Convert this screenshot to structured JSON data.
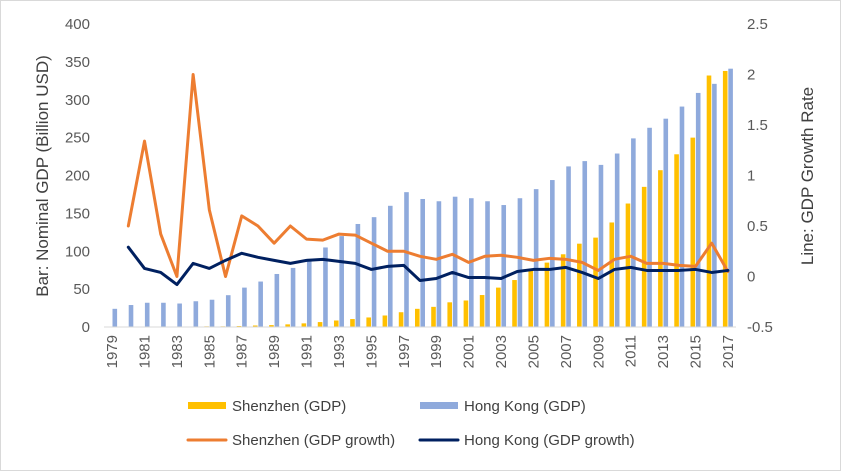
{
  "chart_data": {
    "type": "bar",
    "categories": [
      "1979",
      "1980",
      "1981",
      "1982",
      "1983",
      "1984",
      "1985",
      "1986",
      "1987",
      "1988",
      "1989",
      "1990",
      "1991",
      "1992",
      "1993",
      "1994",
      "1995",
      "1996",
      "1997",
      "1998",
      "1999",
      "2000",
      "2001",
      "2002",
      "2003",
      "2004",
      "2005",
      "2006",
      "2007",
      "2008",
      "2009",
      "2010",
      "2011",
      "2012",
      "2013",
      "2014",
      "2015",
      "2016",
      "2017"
    ],
    "x_tick_labels": [
      "1979",
      "1981",
      "1983",
      "1985",
      "1987",
      "1989",
      "1991",
      "1993",
      "1995",
      "1997",
      "1999",
      "2001",
      "2003",
      "2005",
      "2007",
      "2009",
      "2011",
      "2013",
      "2015",
      "2017"
    ],
    "ylabel": "Bar: Nominal GDP (Billion USD)",
    "y2label": "Line: GDP Growth Rate",
    "ylim": [
      0,
      400
    ],
    "y_ticks": [
      "0",
      "50",
      "100",
      "150",
      "200",
      "250",
      "300",
      "350",
      "400"
    ],
    "y2lim": [
      -0.5,
      2.5
    ],
    "y2_ticks": [
      "-0.5",
      "0",
      "0.5",
      "1",
      "1.5",
      "2",
      "2.5"
    ],
    "grid": false,
    "legend_position": "bottom",
    "series": [
      {
        "name": "Shenzhen (GDP)",
        "kind": "bar",
        "axis": "left",
        "color": "#FFC000",
        "values": [
          0.1,
          0.2,
          0.3,
          0.3,
          0.4,
          0.6,
          0.9,
          0.9,
          1.3,
          2.0,
          2.5,
          3.5,
          4.8,
          6.5,
          8.6,
          10.5,
          12.6,
          15.2,
          19.5,
          24.0,
          26.6,
          32.6,
          35.0,
          42.2,
          52.0,
          62.0,
          75.0,
          85.0,
          96.0,
          110.0,
          118.0,
          138.0,
          163.0,
          185.0,
          207.0,
          228.0,
          250.0,
          332.0,
          338.0
        ]
      },
      {
        "name": "Hong Kong (GDP)",
        "kind": "bar",
        "axis": "left",
        "color": "#8FAADC",
        "values": [
          24,
          29,
          32,
          32,
          31,
          34,
          36,
          42,
          52,
          60,
          70,
          78,
          90,
          105,
          120,
          136,
          145,
          160,
          178,
          169,
          166,
          172,
          170,
          166,
          161,
          170,
          182,
          194,
          212,
          219,
          214,
          229,
          249,
          263,
          275,
          291,
          309,
          321,
          341
        ]
      },
      {
        "name": "Shenzhen (GDP growth)",
        "kind": "line",
        "axis": "right",
        "color": "#ED7D31",
        "values": [
          null,
          0.5,
          1.34,
          0.42,
          0.0,
          2.0,
          0.66,
          0.0,
          0.6,
          0.5,
          0.33,
          0.5,
          0.37,
          0.36,
          0.42,
          0.41,
          0.33,
          0.25,
          0.25,
          0.2,
          0.17,
          0.22,
          0.14,
          0.2,
          0.21,
          0.19,
          0.16,
          0.18,
          0.17,
          0.14,
          0.06,
          0.17,
          0.2,
          0.13,
          0.13,
          0.11,
          0.1,
          0.33,
          0.05
        ]
      },
      {
        "name": "Hong Kong (GDP growth)",
        "kind": "line",
        "axis": "right",
        "color": "#002060",
        "values": [
          null,
          0.29,
          0.08,
          0.04,
          -0.08,
          0.13,
          0.08,
          0.16,
          0.23,
          0.19,
          0.16,
          0.13,
          0.16,
          0.17,
          0.15,
          0.13,
          0.07,
          0.1,
          0.11,
          -0.04,
          -0.02,
          0.04,
          -0.01,
          -0.01,
          -0.02,
          0.05,
          0.07,
          0.07,
          0.09,
          0.04,
          -0.02,
          0.07,
          0.09,
          0.06,
          0.06,
          0.06,
          0.07,
          0.04,
          0.06
        ]
      }
    ]
  }
}
